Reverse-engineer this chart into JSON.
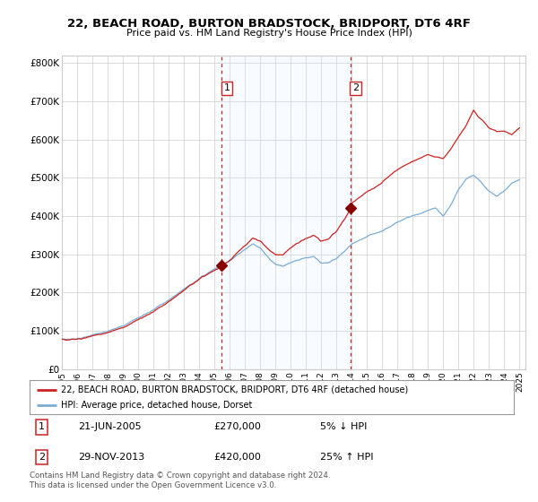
{
  "title": "22, BEACH ROAD, BURTON BRADSTOCK, BRIDPORT, DT6 4RF",
  "subtitle": "Price paid vs. HM Land Registry's House Price Index (HPI)",
  "legend_line1": "22, BEACH ROAD, BURTON BRADSTOCK, BRIDPORT, DT6 4RF (detached house)",
  "legend_line2": "HPI: Average price, detached house, Dorset",
  "footnote": "Contains HM Land Registry data © Crown copyright and database right 2024.\nThis data is licensed under the Open Government Licence v3.0.",
  "vline1_x": 2005.47,
  "vline2_x": 2013.91,
  "sale1_price": 270000,
  "sale2_price": 420000,
  "hpi_color": "#7aadd4",
  "price_color": "#cc2222",
  "dot_color": "#880000",
  "shade_color": "#ddeeff",
  "bg_color": "#ffffff",
  "grid_color": "#cccccc",
  "ylim": [
    0,
    820000
  ],
  "xlim": [
    1995.0,
    2025.4
  ],
  "yticks": [
    0,
    100000,
    200000,
    300000,
    400000,
    500000,
    600000,
    700000,
    800000
  ],
  "ytick_labels": [
    "£0",
    "£100K",
    "£200K",
    "£300K",
    "£400K",
    "£500K",
    "£600K",
    "£700K",
    "£800K"
  ],
  "xticks": [
    1995,
    1996,
    1997,
    1998,
    1999,
    2000,
    2001,
    2002,
    2003,
    2004,
    2005,
    2006,
    2007,
    2008,
    2009,
    2010,
    2011,
    2012,
    2013,
    2014,
    2015,
    2016,
    2017,
    2018,
    2019,
    2020,
    2021,
    2022,
    2023,
    2024,
    2025
  ]
}
